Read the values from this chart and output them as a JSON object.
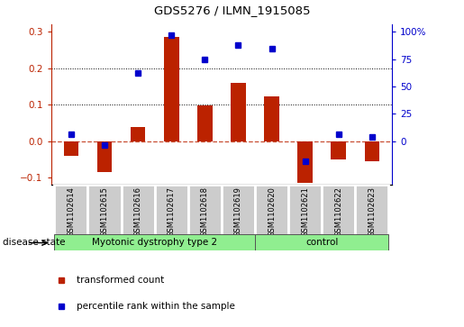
{
  "title": "GDS5276 / ILMN_1915085",
  "samples": [
    "GSM1102614",
    "GSM1102615",
    "GSM1102616",
    "GSM1102617",
    "GSM1102618",
    "GSM1102619",
    "GSM1102620",
    "GSM1102621",
    "GSM1102622",
    "GSM1102623"
  ],
  "red_values": [
    -0.04,
    -0.085,
    0.038,
    0.285,
    0.097,
    0.16,
    0.122,
    -0.115,
    -0.05,
    -0.055
  ],
  "blue_values": [
    0.018,
    -0.012,
    0.188,
    0.29,
    0.225,
    0.263,
    0.255,
    -0.055,
    0.018,
    0.012
  ],
  "groups": [
    {
      "label": "Myotonic dystrophy type 2",
      "samples_count": 6,
      "color": "#90EE90"
    },
    {
      "label": "control",
      "samples_count": 4,
      "color": "#90EE90"
    }
  ],
  "ylim_left": [
    -0.12,
    0.32
  ],
  "left_ticks": [
    -0.1,
    0.0,
    0.1,
    0.2,
    0.3
  ],
  "right_ticks": [
    0,
    25,
    50,
    75,
    100
  ],
  "right_ylim": [
    -40.0,
    106.67
  ],
  "red_color": "#BB2200",
  "blue_color": "#0000CC",
  "bar_width": 0.45,
  "bg_color": "#ffffff",
  "label_box_color": "#CCCCCC",
  "disease_state_label": "disease state",
  "legend_red": "transformed count",
  "legend_blue": "percentile rank within the sample",
  "grid_dotted_vals": [
    0.1,
    0.2
  ],
  "n_samples": 10,
  "group1_count": 6,
  "group2_count": 4
}
